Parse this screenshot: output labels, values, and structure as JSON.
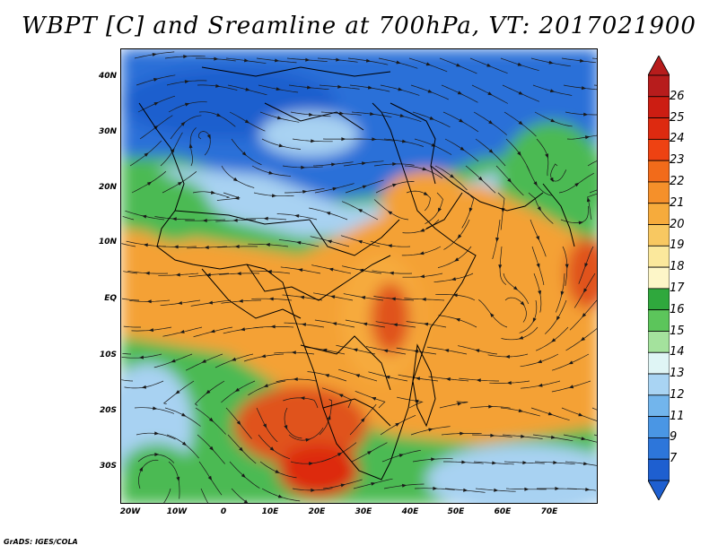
{
  "title": "WBPT [C] and Sreamline at 700hPa, VT: 2017021900",
  "credit": "GrADS: IGES/COLA",
  "lat_labels": [
    "40N",
    "30N",
    "20N",
    "10N",
    "EQ",
    "10S",
    "20S",
    "30S"
  ],
  "lon_labels": [
    "20W",
    "10W",
    "0",
    "10E",
    "20E",
    "30E",
    "40E",
    "50E",
    "60E",
    "70E"
  ],
  "colorbar": {
    "labels": [
      "26",
      "25",
      "24",
      "23",
      "22",
      "21",
      "20",
      "19",
      "18",
      "17",
      "16",
      "15",
      "14",
      "13",
      "12",
      "11",
      "9",
      "7"
    ],
    "colors_top_to_bottom": [
      "#b71c1c",
      "#cc1d12",
      "#dd2a10",
      "#ee4212",
      "#f26b1a",
      "#f5902a",
      "#f6ab3c",
      "#f8c861",
      "#fbe89c",
      "#fdf6c8",
      "#2fa83d",
      "#5cc55b",
      "#a4e29d",
      "#dff5f5",
      "#a9d4f3",
      "#72b5ec",
      "#4a96e4",
      "#2d76da",
      "#1e5fd0"
    ]
  },
  "colors": {
    "cold": "#2b70d8",
    "cool": "#a8d2f2",
    "green": "#4cba52",
    "orange": "#f4a136",
    "hot": "#e0531e",
    "coast": "#000000"
  }
}
